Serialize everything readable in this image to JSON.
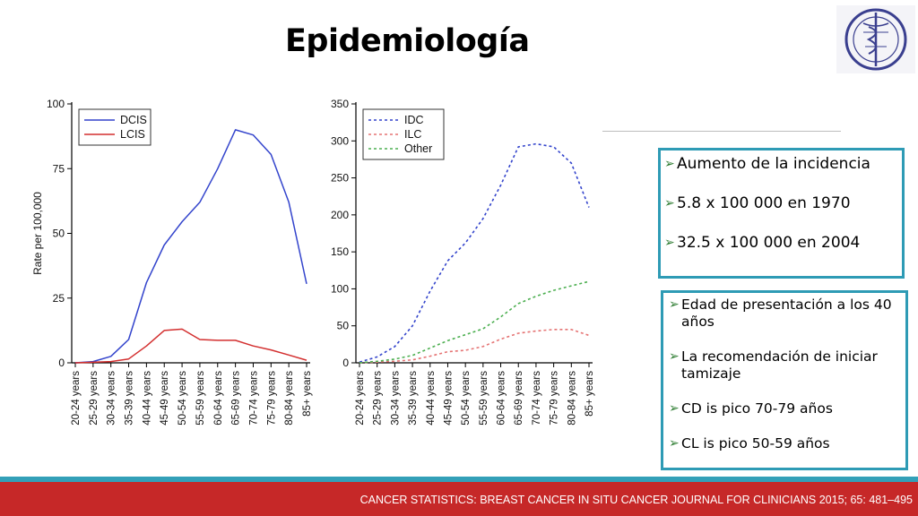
{
  "title": "Epidemiología",
  "logo": {
    "icon": "institution-seal-icon"
  },
  "chart_data": [
    {
      "type": "line",
      "categories": [
        "20-24 years",
        "25-29 years",
        "30-34 years",
        "35-39 years",
        "40-44 years",
        "45-49 years",
        "50-54 years",
        "55-59 years",
        "60-64 years",
        "65-69 years",
        "70-74 years",
        "75-79 years",
        "80-84 years",
        "85+ years"
      ],
      "ylabel": "Rate per 100,000",
      "ylim": [
        0,
        100
      ],
      "yticks": [
        0,
        25,
        50,
        75,
        100
      ],
      "legend_position": "top-left",
      "series": [
        {
          "name": "DCIS",
          "color": "#3344cc",
          "dash": "solid",
          "values": [
            0,
            0.5,
            2.5,
            9,
            31,
            45.5,
            54.5,
            62,
            75,
            90,
            88,
            80.5,
            62,
            30.5
          ]
        },
        {
          "name": "LCIS",
          "color": "#d32f2f",
          "dash": "solid",
          "values": [
            0,
            0.2,
            0.5,
            1.5,
            6.5,
            12.5,
            13,
            9,
            8.7,
            8.7,
            6.5,
            5,
            3,
            1
          ]
        }
      ]
    },
    {
      "type": "line",
      "categories": [
        "20-24 years",
        "25-29 years",
        "30-34 years",
        "35-39 years",
        "40-44 years",
        "45-49 years",
        "50-54 years",
        "55-59 years",
        "60-64 years",
        "65-69 years",
        "70-74 years",
        "75-79 years",
        "80-84 years",
        "85+ years"
      ],
      "ylim": [
        0,
        350
      ],
      "yticks": [
        0,
        50,
        100,
        150,
        200,
        250,
        300,
        350
      ],
      "legend_position": "top-left",
      "series": [
        {
          "name": "IDC",
          "color": "#3344cc",
          "dash": "dotted",
          "values": [
            1,
            8,
            22,
            50,
            97,
            138,
            162,
            195,
            240,
            292,
            296,
            292,
            270,
            210
          ]
        },
        {
          "name": "ILC",
          "color": "#e57373",
          "dash": "dotted",
          "values": [
            0,
            1,
            2,
            4,
            9,
            15,
            17,
            22,
            32,
            40,
            43,
            45,
            45,
            37
          ]
        },
        {
          "name": "Other",
          "color": "#4caf50",
          "dash": "dotted",
          "values": [
            0,
            2,
            5,
            10,
            20,
            30,
            38,
            46,
            62,
            80,
            90,
            98,
            104,
            110
          ]
        }
      ]
    }
  ],
  "box1": {
    "items": [
      "Aumento de  la incidencia",
      "5.8 x 100 000 en 1970",
      "32.5 x 100 000  en 2004"
    ]
  },
  "box2": {
    "items": [
      "Edad de presentación a los 40 años",
      "La recomendación de iniciar tamizaje",
      "CD is  pico 70-79 años",
      "CL is pico 50-59 años"
    ]
  },
  "footer": "CANCER STATISTICS: BREAST CANCER IN SITU CANCER JOURNAL FOR CLINICIANS 2015; 65: 481–495",
  "colors": {
    "accent": "#2e9bb5",
    "footer_band": "#c62828",
    "bullet": "#2e7d32"
  }
}
